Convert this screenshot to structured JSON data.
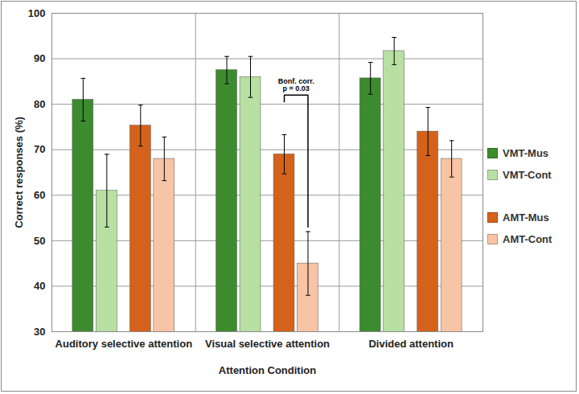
{
  "chart_data": {
    "type": "bar",
    "xlabel": "Attention Condition",
    "ylabel": "Correct responses (%)",
    "categories": [
      "Auditory selective attention",
      "Visual selective attention",
      "Divided attention"
    ],
    "series": [
      {
        "name": "VMT-Mus",
        "color": "#3d8b2f",
        "values": [
          81,
          87.5,
          85.7
        ],
        "errors": [
          4.7,
          3,
          3.5
        ]
      },
      {
        "name": "VMT-Cont",
        "color": "#b8e0a3",
        "values": [
          61,
          86,
          91.7
        ],
        "errors": [
          8,
          4.5,
          3
        ]
      },
      {
        "name": "AMT-Mus",
        "color": "#d5621b",
        "values": [
          75.3,
          69,
          74
        ],
        "errors": [
          4.5,
          4.3,
          5.3
        ]
      },
      {
        "name": "AMT-Cont",
        "color": "#f7c4a5",
        "values": [
          68,
          45,
          68
        ],
        "errors": [
          4.8,
          7,
          4
        ]
      }
    ],
    "ylim": [
      30,
      100
    ],
    "yticks": [
      30,
      40,
      50,
      60,
      70,
      80,
      90,
      100
    ],
    "grid": true,
    "legend": "right",
    "annotations": [
      {
        "text": [
          "Bonf. corr.",
          "p = 0.03"
        ],
        "category": "Visual selective attention",
        "from": "AMT-Mus",
        "to": "AMT-Cont",
        "y": 82,
        "ends": [
          80.5,
          53
        ]
      }
    ]
  }
}
